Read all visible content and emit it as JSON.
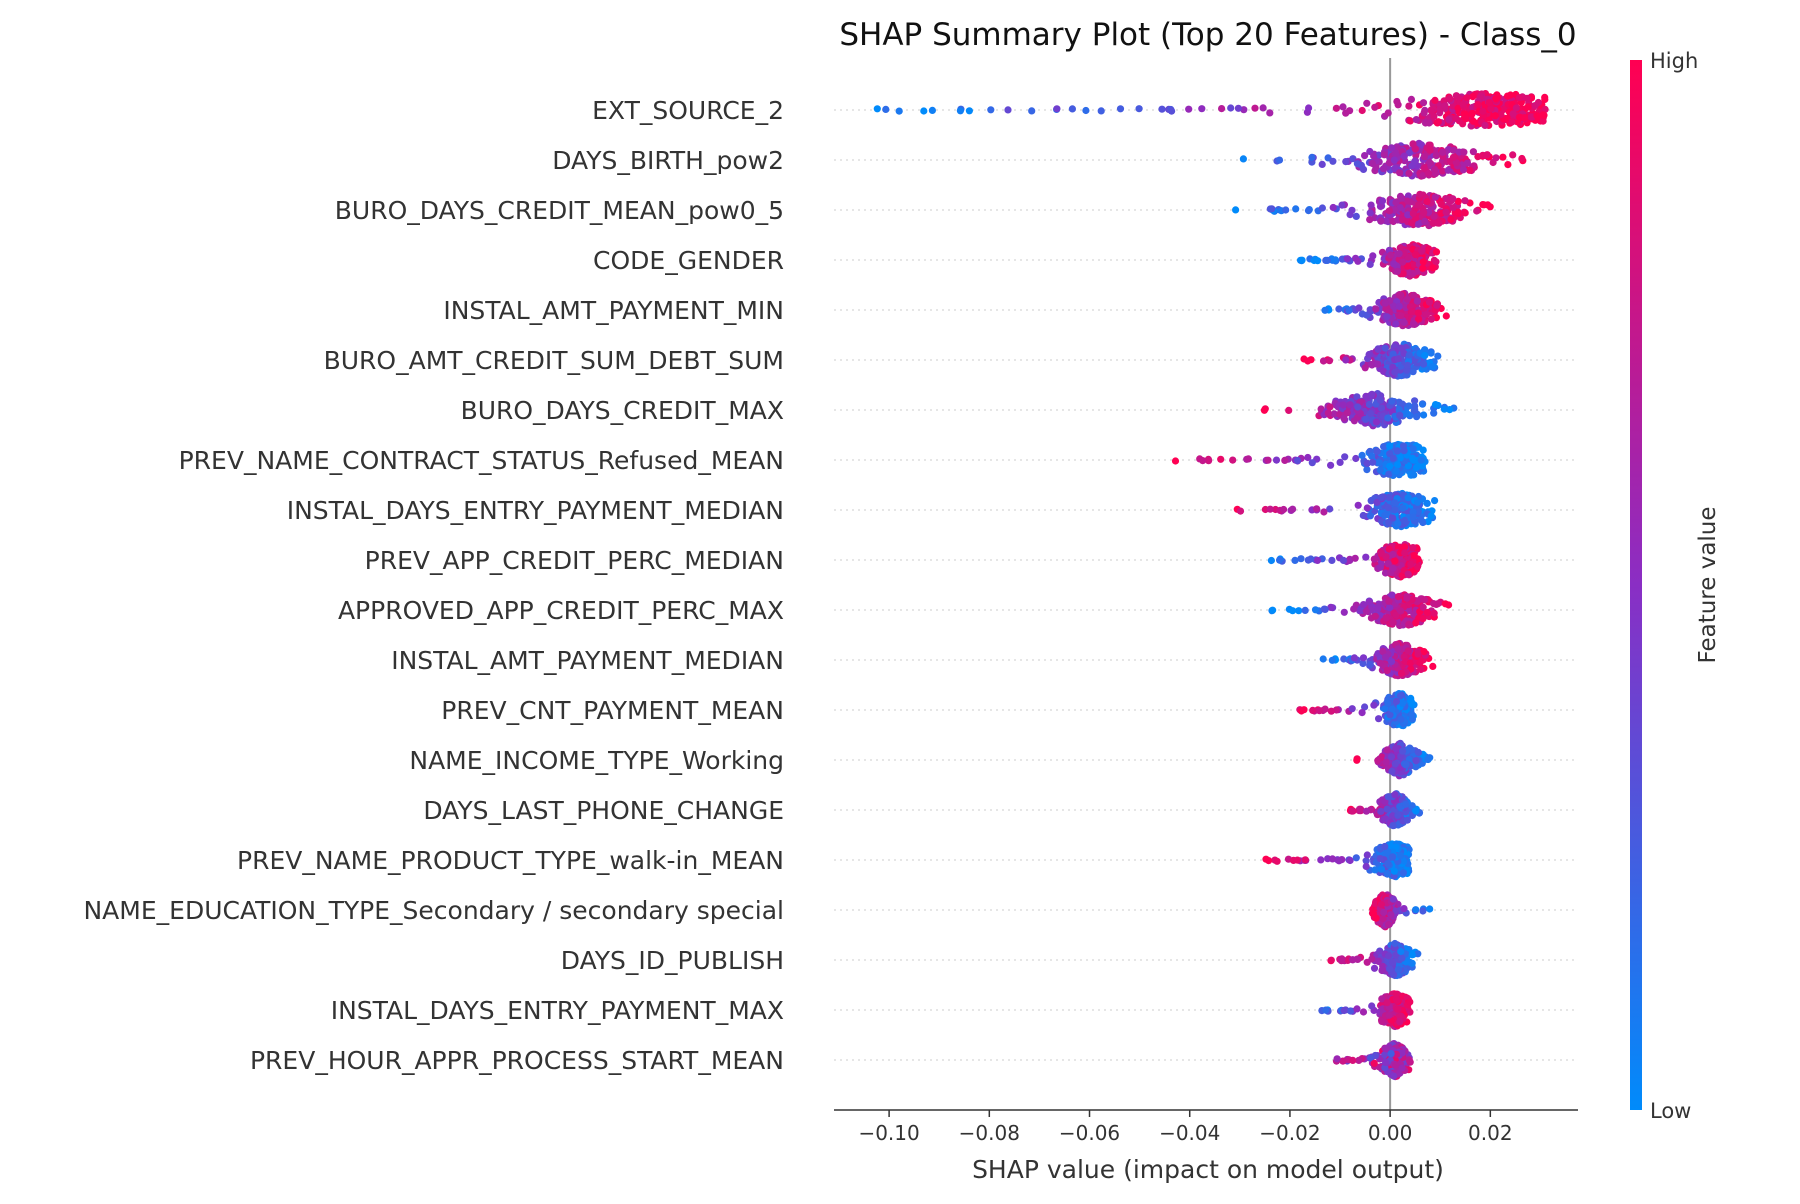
{
  "chart_data": {
    "type": "scatter",
    "subtype": "shap-beeswarm-summary",
    "title": "SHAP Summary Plot (Top 20 Features) - Class_0",
    "xlabel": "SHAP value (impact on model output)",
    "xlim": [
      -0.111,
      0.0375
    ],
    "xticks": [
      -0.1,
      -0.08,
      -0.06,
      -0.04,
      -0.02,
      0.0,
      0.02
    ],
    "xtick_labels": [
      "−0.10",
      "−0.08",
      "−0.06",
      "−0.04",
      "−0.02",
      "0.00",
      "0.02"
    ],
    "colorbar": {
      "label": "Feature value",
      "high_label": "High",
      "low_label": "Low",
      "low_color": "#008bfb",
      "mid_color": "#8a2ec4",
      "high_color": "#ff0052"
    },
    "features": [
      {
        "name": "EXT_SOURCE_2",
        "min": -0.104,
        "max": 0.031,
        "mode": "positive-high",
        "density_peak": 0.02
      },
      {
        "name": "DAYS_BIRTH_pow2",
        "min": -0.032,
        "max": 0.028,
        "mode": "positive-high",
        "density_peak": 0.006
      },
      {
        "name": "BURO_DAYS_CREDIT_MEAN_pow0_5",
        "min": -0.031,
        "max": 0.02,
        "mode": "positive-high",
        "density_peak": 0.006
      },
      {
        "name": "CODE_GENDER",
        "min": -0.018,
        "max": 0.01,
        "mode": "positive-high",
        "density_peak": 0.004
      },
      {
        "name": "INSTAL_AMT_PAYMENT_MIN",
        "min": -0.016,
        "max": 0.012,
        "mode": "positive-high",
        "density_peak": 0.003
      },
      {
        "name": "BURO_AMT_CREDIT_SUM_DEBT_SUM",
        "min": -0.018,
        "max": 0.011,
        "mode": "negative-high",
        "density_peak": 0.002
      },
      {
        "name": "BURO_DAYS_CREDIT_MAX",
        "min": -0.026,
        "max": 0.013,
        "mode": "negative-high",
        "density_peak": -0.003
      },
      {
        "name": "PREV_NAME_CONTRACT_STATUS_Refused_MEAN",
        "min": -0.044,
        "max": 0.007,
        "mode": "negative-high",
        "density_peak": 0.002
      },
      {
        "name": "INSTAL_DAYS_ENTRY_PAYMENT_MEDIAN",
        "min": -0.031,
        "max": 0.009,
        "mode": "negative-high",
        "density_peak": 0.002
      },
      {
        "name": "PREV_APP_CREDIT_PERC_MEDIAN",
        "min": -0.025,
        "max": 0.007,
        "mode": "positive-high",
        "density_peak": 0.002
      },
      {
        "name": "APPROVED_APP_CREDIT_PERC_MAX",
        "min": -0.024,
        "max": 0.012,
        "mode": "positive-high",
        "density_peak": 0.002
      },
      {
        "name": "INSTAL_AMT_PAYMENT_MEDIAN",
        "min": -0.014,
        "max": 0.009,
        "mode": "positive-high",
        "density_peak": 0.002
      },
      {
        "name": "PREV_CNT_PAYMENT_MEAN",
        "min": -0.019,
        "max": 0.005,
        "mode": "negative-high",
        "density_peak": 0.002
      },
      {
        "name": "NAME_INCOME_TYPE_Working",
        "min": -0.007,
        "max": 0.008,
        "mode": "negative-high",
        "density_peak": 0.002
      },
      {
        "name": "DAYS_LAST_PHONE_CHANGE",
        "min": -0.008,
        "max": 0.006,
        "mode": "negative-high",
        "density_peak": 0.001
      },
      {
        "name": "PREV_NAME_PRODUCT_TYPE_walk-in_MEAN",
        "min": -0.025,
        "max": 0.004,
        "mode": "negative-high",
        "density_peak": 0.001
      },
      {
        "name": "NAME_EDUCATION_TYPE_Secondary / secondary special",
        "min": -0.004,
        "max": 0.008,
        "mode": "negative-high",
        "density_peak": -0.001
      },
      {
        "name": "DAYS_ID_PUBLISH",
        "min": -0.012,
        "max": 0.006,
        "mode": "negative-high",
        "density_peak": 0.001
      },
      {
        "name": "INSTAL_DAYS_ENTRY_PAYMENT_MAX",
        "min": -0.015,
        "max": 0.004,
        "mode": "positive-high",
        "density_peak": 0.001
      },
      {
        "name": "PREV_HOUR_APPR_PROCESS_START_MEAN",
        "min": -0.011,
        "max": 0.004,
        "mode": "mixed",
        "density_peak": 0.001
      }
    ]
  }
}
